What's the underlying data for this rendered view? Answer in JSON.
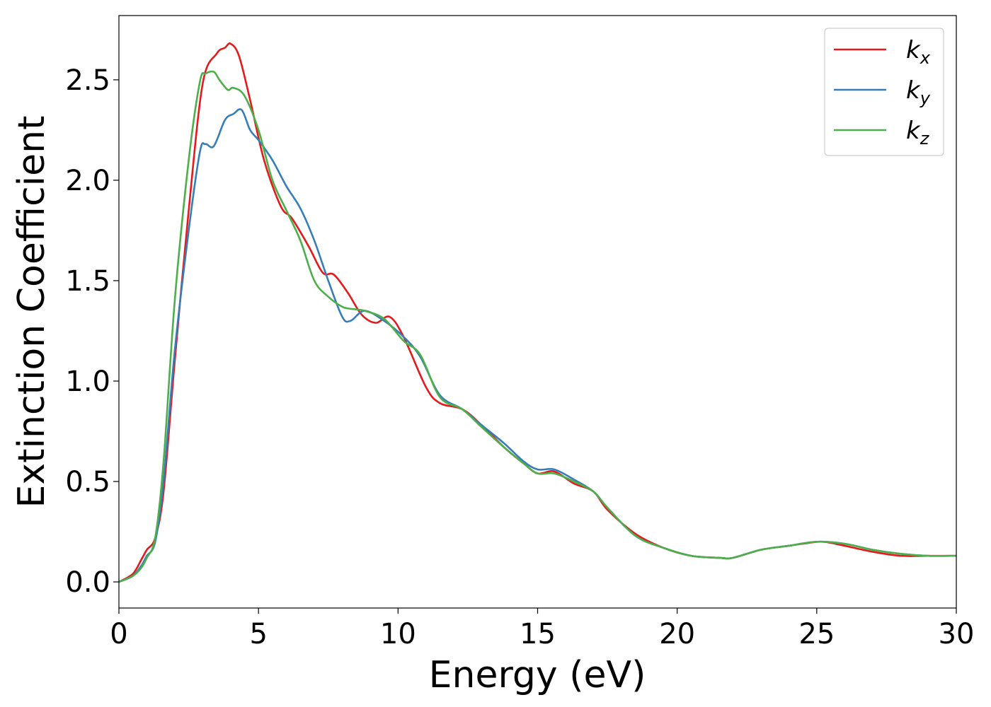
{
  "chart_data": {
    "type": "line",
    "title": "",
    "xlabel": "Energy (eV)",
    "ylabel": "Extinction Coefficient",
    "xlim": [
      0,
      30
    ],
    "ylim": [
      -0.13,
      2.82
    ],
    "xticks": [
      0,
      5,
      10,
      15,
      20,
      25,
      30
    ],
    "xtick_labels": [
      "0",
      "5",
      "10",
      "15",
      "20",
      "25",
      "30"
    ],
    "yticks": [
      0.0,
      0.5,
      1.0,
      1.5,
      2.0,
      2.5
    ],
    "ytick_labels": [
      "0.0",
      "0.5",
      "1.0",
      "1.5",
      "2.0",
      "2.5"
    ],
    "grid": false,
    "legend_position": "top-right",
    "series": [
      {
        "name": "k_x",
        "label_base": "k",
        "label_sub": "x",
        "color": "#e41a1c",
        "x": [
          0,
          0.5,
          0.8,
          1.0,
          1.3,
          1.6,
          2.0,
          2.5,
          3.0,
          3.5,
          3.8,
          4.0,
          4.3,
          4.7,
          5.2,
          5.8,
          6.2,
          6.8,
          7.3,
          7.7,
          8.2,
          8.7,
          9.2,
          9.7,
          10.2,
          11.0,
          11.5,
          12.3,
          13.0,
          13.8,
          14.5,
          15.0,
          15.6,
          16.3,
          17.0,
          17.5,
          18.5,
          19.5,
          20.5,
          21.5,
          22.0,
          23.0,
          24.0,
          24.5,
          25.2,
          26.0,
          27.0,
          28.0,
          29.0,
          30.0
        ],
        "values": [
          0.0,
          0.04,
          0.11,
          0.16,
          0.22,
          0.45,
          1.1,
          1.85,
          2.48,
          2.63,
          2.66,
          2.68,
          2.62,
          2.4,
          2.1,
          1.87,
          1.81,
          1.67,
          1.54,
          1.53,
          1.44,
          1.33,
          1.29,
          1.32,
          1.22,
          0.97,
          0.89,
          0.86,
          0.78,
          0.67,
          0.59,
          0.54,
          0.55,
          0.49,
          0.45,
          0.36,
          0.24,
          0.17,
          0.13,
          0.12,
          0.12,
          0.16,
          0.18,
          0.19,
          0.2,
          0.18,
          0.15,
          0.13,
          0.13,
          0.13
        ]
      },
      {
        "name": "k_y",
        "label_base": "k",
        "label_sub": "y",
        "color": "#377eb8",
        "x": [
          0,
          0.5,
          0.8,
          1.0,
          1.3,
          1.6,
          2.0,
          2.5,
          2.9,
          3.1,
          3.4,
          3.8,
          4.1,
          4.4,
          4.7,
          5.0,
          5.5,
          6.0,
          6.5,
          7.0,
          7.5,
          8.0,
          8.3,
          8.8,
          9.5,
          10.2,
          10.8,
          11.5,
          12.3,
          13.0,
          13.8,
          14.5,
          15.0,
          15.6,
          16.3,
          17.0,
          17.5,
          18.5,
          19.5,
          20.5,
          21.5,
          22.0,
          23.0,
          24.0,
          25.0,
          26.0,
          27.0,
          28.0,
          29.0,
          30.0
        ],
        "values": [
          0.0,
          0.03,
          0.08,
          0.13,
          0.2,
          0.5,
          1.15,
          1.75,
          2.14,
          2.18,
          2.17,
          2.3,
          2.33,
          2.35,
          2.25,
          2.2,
          2.1,
          1.97,
          1.86,
          1.7,
          1.5,
          1.32,
          1.3,
          1.35,
          1.3,
          1.22,
          1.12,
          0.93,
          0.86,
          0.78,
          0.69,
          0.6,
          0.56,
          0.56,
          0.51,
          0.45,
          0.37,
          0.23,
          0.17,
          0.13,
          0.12,
          0.12,
          0.16,
          0.18,
          0.2,
          0.19,
          0.16,
          0.14,
          0.13,
          0.13
        ]
      },
      {
        "name": "k_z",
        "label_base": "k",
        "label_sub": "z",
        "color": "#4daf4a",
        "x": [
          0,
          0.5,
          0.8,
          1.0,
          1.3,
          1.6,
          2.0,
          2.5,
          2.9,
          3.1,
          3.4,
          3.6,
          3.9,
          4.1,
          4.5,
          5.0,
          5.5,
          6.0,
          6.5,
          7.0,
          7.5,
          8.0,
          8.3,
          8.8,
          9.5,
          10.2,
          10.8,
          11.5,
          12.3,
          13.0,
          13.8,
          14.5,
          15.0,
          15.6,
          16.3,
          17.0,
          17.5,
          18.5,
          19.5,
          20.5,
          21.5,
          22.0,
          23.0,
          24.0,
          25.0,
          26.0,
          27.0,
          28.0,
          29.0,
          30.0
        ],
        "values": [
          0.0,
          0.03,
          0.07,
          0.12,
          0.22,
          0.6,
          1.4,
          2.1,
          2.49,
          2.53,
          2.54,
          2.5,
          2.45,
          2.46,
          2.42,
          2.25,
          2.0,
          1.85,
          1.7,
          1.5,
          1.42,
          1.37,
          1.36,
          1.35,
          1.31,
          1.2,
          1.13,
          0.92,
          0.86,
          0.77,
          0.67,
          0.59,
          0.54,
          0.54,
          0.5,
          0.45,
          0.37,
          0.23,
          0.17,
          0.13,
          0.12,
          0.12,
          0.16,
          0.18,
          0.2,
          0.19,
          0.16,
          0.14,
          0.13,
          0.13
        ]
      }
    ]
  }
}
